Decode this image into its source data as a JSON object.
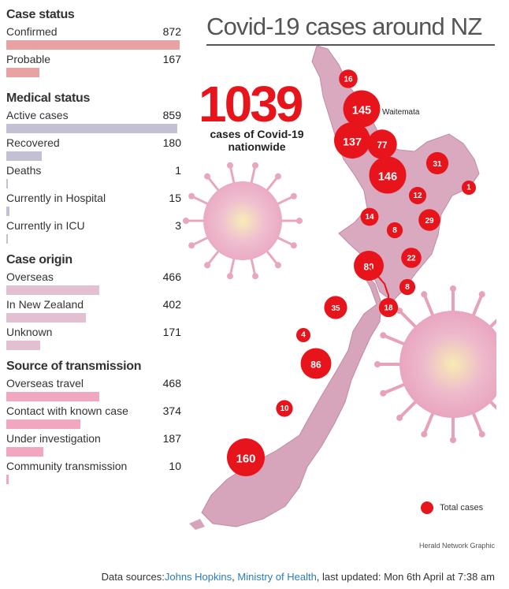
{
  "title": "Covid-19 cases around NZ",
  "headline": {
    "total": "1039",
    "caption_line1": "cases of Covid-19",
    "caption_line2": "nationwide"
  },
  "sections": [
    {
      "title": "Case status",
      "color": "#e8a2a2",
      "max": 872,
      "items": [
        {
          "label": "Confirmed",
          "value": 872
        },
        {
          "label": "Probable",
          "value": 167
        }
      ]
    },
    {
      "title": "Medical status",
      "color": "#c4c0d3",
      "max": 872,
      "items": [
        {
          "label": "Active cases",
          "value": 859
        },
        {
          "label": "Recovered",
          "value": 180
        },
        {
          "label": "Deaths",
          "value": 1
        },
        {
          "label": "Currently in Hospital",
          "value": 15
        },
        {
          "label": "Currently in ICU",
          "value": 3
        }
      ]
    },
    {
      "title": "Case origin",
      "color": "#e3bfd2",
      "max": 872,
      "items": [
        {
          "label": "Overseas",
          "value": 466
        },
        {
          "label": "In New Zealand",
          "value": 402
        },
        {
          "label": "Unknown",
          "value": 171
        }
      ]
    },
    {
      "title": "Source of transmission",
      "color": "#f2a7c0",
      "max": 872,
      "items": [
        {
          "label": "Overseas travel",
          "value": 468
        },
        {
          "label": "Contact with known case",
          "value": 374
        },
        {
          "label": "Under investigation",
          "value": 187
        },
        {
          "label": "Community transmission",
          "value": 10
        }
      ]
    }
  ],
  "chart_data": {
    "type": "bubble-map",
    "legend": "Total cases",
    "place_label": "Waitemata",
    "cases": [
      {
        "value": 16
      },
      {
        "value": 145
      },
      {
        "value": 137
      },
      {
        "value": 77
      },
      {
        "value": 146
      },
      {
        "value": 31
      },
      {
        "value": 1
      },
      {
        "value": 12
      },
      {
        "value": 14
      },
      {
        "value": 8
      },
      {
        "value": 29
      },
      {
        "value": 22
      },
      {
        "value": 80
      },
      {
        "value": 8
      },
      {
        "value": 18
      },
      {
        "value": 35
      },
      {
        "value": 4
      },
      {
        "value": 86
      },
      {
        "value": 10
      },
      {
        "value": 160
      }
    ]
  },
  "credit": "Herald Network Graphic",
  "sources": {
    "prefix": "Data sources:",
    "link1": "Johns Hopkins",
    "sep": ", ",
    "link2": "Ministry of Health",
    "suffix": ", last updated: Mon 6th April at 7:38 am"
  },
  "colors": {
    "accent": "#e8141b",
    "map_fill": "#d9a9bf",
    "title": "#555555"
  }
}
